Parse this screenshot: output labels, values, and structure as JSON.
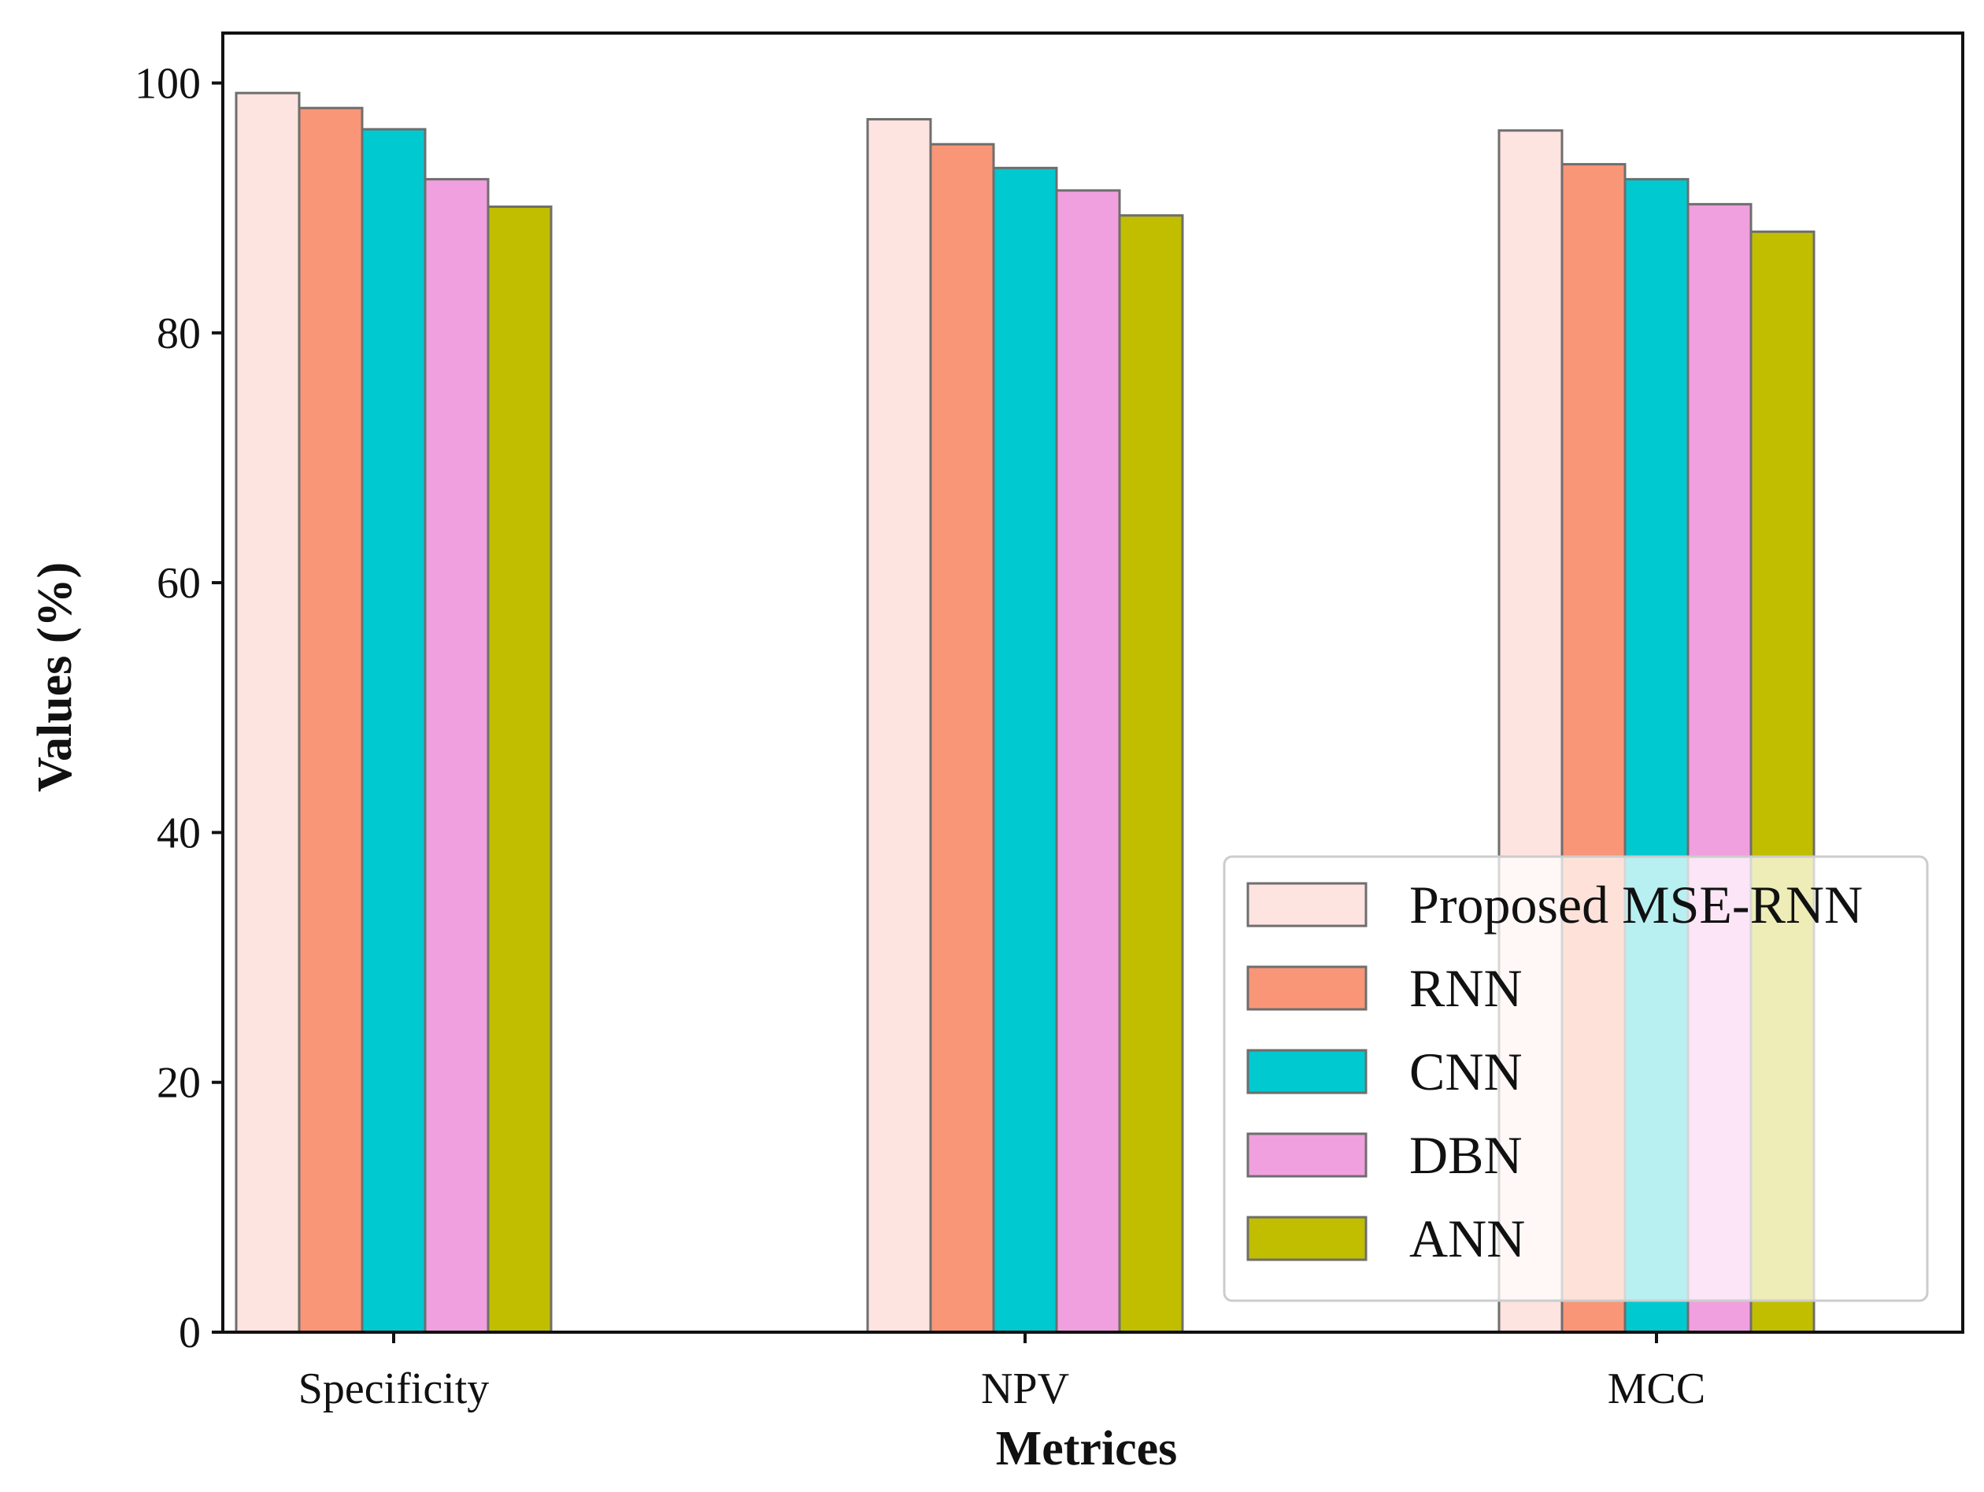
{
  "chart_data": {
    "type": "bar",
    "title": "",
    "xlabel": "Metrices",
    "ylabel": "Values (%)",
    "ylim": [
      0,
      104
    ],
    "yticks": [
      0,
      20,
      40,
      60,
      80,
      100
    ],
    "categories": [
      "Specificity",
      "NPV",
      "MCC"
    ],
    "series": [
      {
        "name": "Proposed MSE-RNN",
        "color": "#fde4e0",
        "values": [
          99.2,
          97.1,
          96.2
        ]
      },
      {
        "name": "RNN",
        "color": "#f99678",
        "values": [
          98.0,
          95.1,
          93.5
        ]
      },
      {
        "name": "CNN",
        "color": "#00c9cf",
        "values": [
          96.3,
          93.2,
          92.3
        ]
      },
      {
        "name": "DBN",
        "color": "#f0a0de",
        "values": [
          92.3,
          91.4,
          90.3
        ]
      },
      {
        "name": "ANN",
        "color": "#c1be00",
        "values": [
          90.1,
          89.4,
          88.1
        ]
      }
    ],
    "legend_position": "lower-right",
    "grid": false
  }
}
